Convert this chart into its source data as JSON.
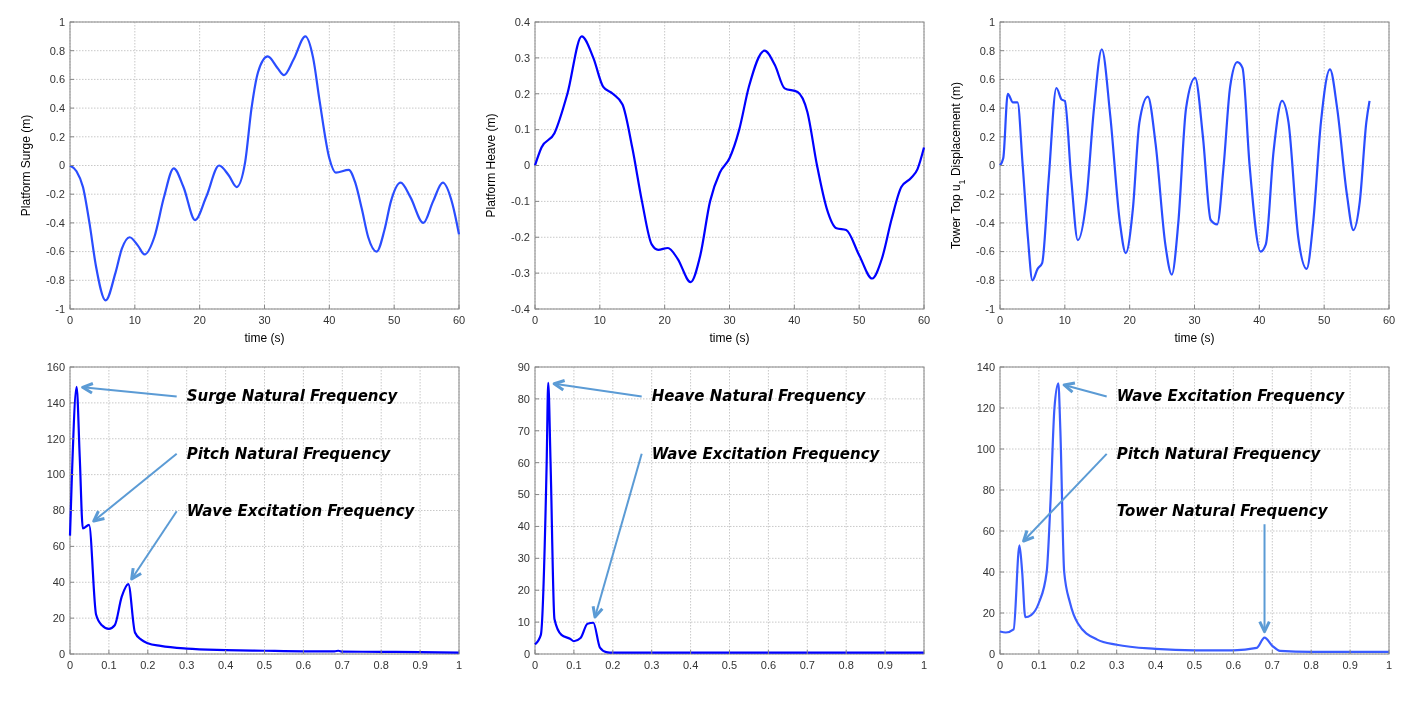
{
  "chart_data": [
    {
      "type": "line",
      "xlabel": "time (s)",
      "ylabel": "Platform Surge (m)",
      "color": "#2a4dff",
      "xlim": [
        0,
        60
      ],
      "xticks": [
        0,
        10,
        20,
        30,
        40,
        50,
        60
      ],
      "ylim": [
        -1,
        1
      ],
      "yticks": [
        -1,
        -0.8,
        -0.6,
        -0.4,
        -0.2,
        0,
        0.2,
        0.4,
        0.6,
        0.8,
        1
      ],
      "grid": true,
      "x": [
        0,
        1,
        2,
        3,
        4,
        5.5,
        7,
        8,
        9.2,
        10.5,
        11.5,
        13,
        14.5,
        16,
        17.5,
        19.3,
        21,
        23,
        24.5,
        25.7,
        27,
        28,
        29,
        30.5,
        32,
        33,
        34.5,
        36.3,
        37.5,
        38.5,
        40,
        41,
        43,
        44,
        45,
        46,
        47.3,
        48.5,
        49.5,
        51,
        52.5,
        54.5,
        56,
        57.5,
        59,
        60
      ],
      "values": [
        0,
        -0.04,
        -0.15,
        -0.4,
        -0.7,
        -0.94,
        -0.75,
        -0.58,
        -0.5,
        -0.56,
        -0.62,
        -0.5,
        -0.22,
        -0.02,
        -0.15,
        -0.38,
        -0.22,
        0,
        -0.07,
        -0.15,
        0.02,
        0.4,
        0.65,
        0.76,
        0.68,
        0.63,
        0.74,
        0.9,
        0.75,
        0.45,
        0.05,
        -0.05,
        -0.03,
        -0.12,
        -0.3,
        -0.5,
        -0.6,
        -0.45,
        -0.25,
        -0.12,
        -0.22,
        -0.4,
        -0.25,
        -0.12,
        -0.27,
        -0.48
      ]
    },
    {
      "type": "line",
      "xlabel": "time (s)",
      "ylabel": "Platform Heave (m)",
      "color": "#0000ff",
      "xlim": [
        0,
        60
      ],
      "xticks": [
        0,
        10,
        20,
        30,
        40,
        50,
        60
      ],
      "ylim": [
        -0.4,
        0.4
      ],
      "yticks": [
        -0.4,
        -0.3,
        -0.2,
        -0.1,
        0,
        0.1,
        0.2,
        0.3,
        0.4
      ],
      "grid": true,
      "x": [
        0,
        1,
        3,
        5,
        7.2,
        9,
        10.5,
        12,
        13.5,
        15,
        16.5,
        18,
        19,
        20.5,
        22,
        24,
        25.5,
        27,
        28.5,
        30,
        31.5,
        33,
        35.4,
        37,
        38.5,
        40.5,
        42,
        43.5,
        45,
        46.5,
        48,
        50,
        52,
        53.5,
        55,
        56.5,
        58,
        59,
        60
      ],
      "values": [
        0,
        0.05,
        0.09,
        0.2,
        0.36,
        0.3,
        0.22,
        0.2,
        0.17,
        0.05,
        -0.1,
        -0.22,
        -0.235,
        -0.23,
        -0.26,
        -0.325,
        -0.25,
        -0.1,
        -0.02,
        0.02,
        0.1,
        0.22,
        0.32,
        0.28,
        0.215,
        0.205,
        0.15,
        0,
        -0.12,
        -0.175,
        -0.18,
        -0.25,
        -0.315,
        -0.26,
        -0.15,
        -0.06,
        -0.035,
        -0.01,
        0.05
      ]
    },
    {
      "type": "line",
      "xlabel": "time (s)",
      "ylabel": "Tower Top u$_{1}$ Displacement (m)",
      "color": "#2a4dff",
      "xlim": [
        0,
        60
      ],
      "xticks": [
        0,
        10,
        20,
        30,
        40,
        50,
        60
      ],
      "ylim": [
        -1,
        1
      ],
      "yticks": [
        -1,
        -0.8,
        -0.6,
        -0.4,
        -0.2,
        0,
        0.2,
        0.4,
        0.6,
        0.8,
        1
      ],
      "grid": true,
      "x": [
        0,
        0.5,
        1.2,
        2,
        2.7,
        3.5,
        4.3,
        5,
        5.8,
        6.5,
        7.5,
        8.7,
        9.5,
        10,
        11,
        12,
        13.3,
        14.5,
        15.7,
        17,
        18.5,
        19.4,
        20.5,
        21.5,
        22.8,
        24,
        25.5,
        26.5,
        27.5,
        28.7,
        30.1,
        31.3,
        32.5,
        33.5,
        34.5,
        35.5,
        36.6,
        37.4,
        38.5,
        40.2,
        41,
        42.2,
        43.5,
        44.5,
        46,
        47.3,
        48.3,
        49.5,
        50.9,
        52,
        53.5,
        54.5,
        55.5,
        56.5,
        57
      ],
      "values": [
        0,
        0.05,
        0.5,
        0.44,
        0.44,
        0,
        -0.5,
        -0.8,
        -0.72,
        -0.68,
        -0.1,
        0.54,
        0.46,
        0.45,
        -0.1,
        -0.52,
        -0.25,
        0.4,
        0.81,
        0.35,
        -0.4,
        -0.61,
        -0.3,
        0.3,
        0.48,
        0.15,
        -0.55,
        -0.76,
        -0.4,
        0.4,
        0.61,
        0.2,
        -0.38,
        -0.41,
        0,
        0.55,
        0.72,
        0.68,
        0,
        -0.6,
        -0.55,
        0.1,
        0.45,
        0.3,
        -0.5,
        -0.72,
        -0.4,
        0.3,
        0.67,
        0.4,
        -0.2,
        -0.45,
        -0.25,
        0.3,
        0.45
      ]
    },
    {
      "type": "line",
      "color": "#0000ff",
      "xlim": [
        0,
        1
      ],
      "xticks": [
        0,
        0.1,
        0.2,
        0.3,
        0.4,
        0.5,
        0.6,
        0.7,
        0.8,
        0.9,
        1
      ],
      "ylim": [
        0,
        160
      ],
      "yticks": [
        0,
        20,
        40,
        60,
        80,
        100,
        120,
        140,
        160
      ],
      "grid": true,
      "x": [
        0,
        0.005,
        0.017,
        0.025,
        0.033,
        0.049,
        0.067,
        0.082,
        0.1,
        0.115,
        0.133,
        0.15,
        0.167,
        0.183,
        0.2,
        0.233,
        0.3,
        0.4,
        0.5,
        0.6,
        0.68,
        0.69,
        0.7,
        0.8,
        0.9,
        1
      ],
      "values": [
        66,
        100,
        149,
        110,
        70,
        72,
        22,
        16,
        14,
        16,
        32,
        39,
        12,
        8,
        6,
        4.5,
        3,
        2.2,
        1.8,
        1.5,
        1.5,
        1.8,
        1.3,
        1.2,
        1,
        0.8
      ],
      "annotations": [
        {
          "text": "Surge Natural Frequency",
          "x": 0.017,
          "y": 149
        },
        {
          "text": "Pitch Natural Frequency",
          "x": 0.049,
          "y": 72
        },
        {
          "text": "Wave Excitation Frequency",
          "x": 0.15,
          "y": 39
        }
      ]
    },
    {
      "type": "line",
      "color": "#0000ff",
      "xlim": [
        0,
        1
      ],
      "xticks": [
        0,
        0.1,
        0.2,
        0.3,
        0.4,
        0.5,
        0.6,
        0.7,
        0.8,
        0.9,
        1
      ],
      "ylim": [
        0,
        90
      ],
      "yticks": [
        0,
        10,
        20,
        30,
        40,
        50,
        60,
        70,
        80,
        90
      ],
      "grid": true,
      "x": [
        0,
        0.015,
        0.03,
        0.034,
        0.04,
        0.05,
        0.068,
        0.09,
        0.1,
        0.117,
        0.135,
        0.15,
        0.167,
        0.183,
        0.2,
        0.3,
        0.5,
        0.7,
        1
      ],
      "values": [
        3,
        6,
        60,
        85,
        60,
        11,
        6,
        4.8,
        4,
        5,
        9.5,
        9.8,
        2,
        0.6,
        0.4,
        0.4,
        0.4,
        0.4,
        0.4
      ],
      "annotations": [
        {
          "text": "Heave Natural Frequency",
          "x": 0.034,
          "y": 85
        },
        {
          "text": "Wave Excitation Frequency",
          "x": 0.15,
          "y": 9.8
        }
      ]
    },
    {
      "type": "line",
      "color": "#3a5cff",
      "xlim": [
        0,
        1
      ],
      "xticks": [
        0,
        0.1,
        0.2,
        0.3,
        0.4,
        0.5,
        0.6,
        0.7,
        0.8,
        0.9,
        1
      ],
      "ylim": [
        0,
        140
      ],
      "yticks": [
        0,
        20,
        40,
        60,
        80,
        100,
        120,
        140
      ],
      "grid": true,
      "x": [
        0,
        0.015,
        0.035,
        0.05,
        0.057,
        0.065,
        0.08,
        0.1,
        0.12,
        0.13,
        0.14,
        0.15,
        0.155,
        0.165,
        0.18,
        0.2,
        0.25,
        0.3,
        0.4,
        0.5,
        0.6,
        0.66,
        0.68,
        0.7,
        0.72,
        0.8,
        0.9,
        1
      ],
      "values": [
        11,
        10.5,
        12,
        53,
        40,
        18,
        19,
        25,
        40,
        75,
        120,
        132,
        110,
        40,
        25,
        15,
        7,
        4.5,
        2.5,
        1.8,
        1.8,
        3,
        8,
        4,
        1.5,
        1,
        1,
        1
      ],
      "annotations": [
        {
          "text": "Wave Excitation Frequency",
          "x": 0.15,
          "y": 132
        },
        {
          "text": "Pitch Natural Frequency",
          "x": 0.05,
          "y": 53
        },
        {
          "text": "Tower Natural Frequency",
          "x": 0.68,
          "y": 8
        }
      ]
    }
  ]
}
